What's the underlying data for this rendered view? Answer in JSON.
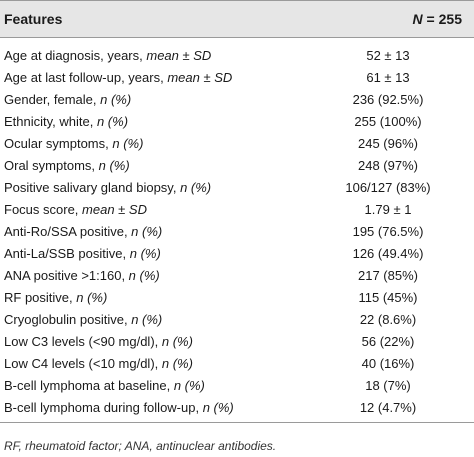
{
  "table": {
    "header": {
      "feature": "Features",
      "n_symbol": "N",
      "n_value": " = 255"
    },
    "rows": [
      {
        "feature": "Age at diagnosis, years, ",
        "stat": "mean ± SD",
        "value": "52 ± 13"
      },
      {
        "feature": "Age at last follow-up, years, ",
        "stat": "mean ± SD",
        "value": "61 ± 13"
      },
      {
        "feature": "Gender, female, ",
        "stat": "n (%)",
        "value": "236 (92.5%)"
      },
      {
        "feature": "Ethnicity, white, ",
        "stat": "n (%)",
        "value": "255 (100%)"
      },
      {
        "feature": "Ocular symptoms, ",
        "stat": "n (%)",
        "value": "245 (96%)"
      },
      {
        "feature": "Oral symptoms, ",
        "stat": "n (%)",
        "value": "248 (97%)"
      },
      {
        "feature": "Positive salivary gland biopsy, ",
        "stat": "n (%)",
        "value": "106/127 (83%)"
      },
      {
        "feature": "Focus score, ",
        "stat": "mean ± SD",
        "value": "1.79 ± 1"
      },
      {
        "feature": "Anti-Ro/SSA positive, ",
        "stat": "n (%)",
        "value": "195 (76.5%)"
      },
      {
        "feature": "Anti-La/SSB positive, ",
        "stat": "n (%)",
        "value": "126 (49.4%)"
      },
      {
        "feature": "ANA positive >1:160, ",
        "stat": "n (%)",
        "value": "217 (85%)"
      },
      {
        "feature": "RF positive, ",
        "stat": "n (%)",
        "value": "115 (45%)"
      },
      {
        "feature": "Cryoglobulin positive, ",
        "stat": "n (%)",
        "value": "22 (8.6%)"
      },
      {
        "feature": "Low C3 levels (<90 mg/dl), ",
        "stat": "n (%)",
        "value": "56 (22%)"
      },
      {
        "feature": "Low C4 levels (<10 mg/dl), ",
        "stat": "n (%)",
        "value": "40 (16%)"
      },
      {
        "feature": "B-cell lymphoma at baseline, ",
        "stat": "n (%)",
        "value": "18 (7%)"
      },
      {
        "feature": "B-cell lymphoma during follow-up, ",
        "stat": "n (%)",
        "value": "12 (4.7%)"
      }
    ],
    "footnote": "RF, rheumatoid factor; ANA, antinuclear antibodies."
  }
}
